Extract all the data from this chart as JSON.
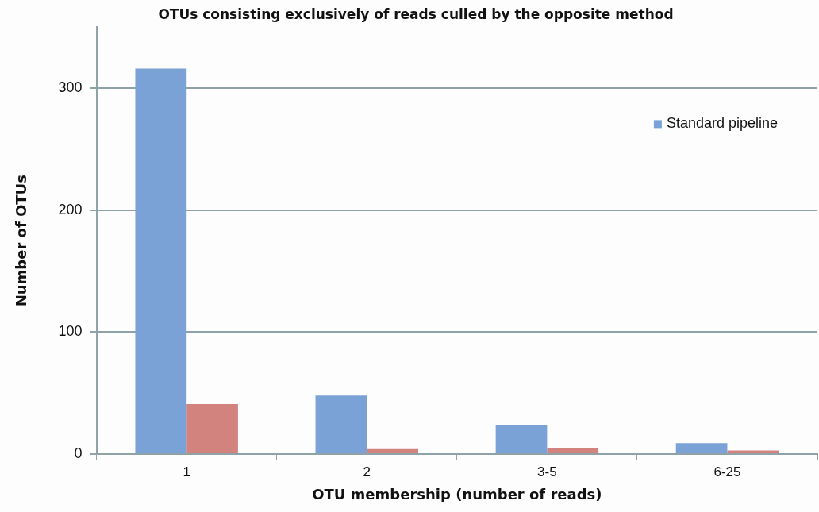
{
  "chart_data": {
    "type": "bar",
    "title": "OTUs consisting exclusively of reads culled by the opposite method",
    "xlabel": "OTU membership (number of reads)",
    "ylabel": "Number of OTUs",
    "categories": [
      "1",
      "2",
      "3-5",
      "6-25"
    ],
    "series": [
      {
        "name": "Standard pipeline",
        "color": "#7aa2d6",
        "values": [
          316,
          48,
          24,
          9
        ]
      },
      {
        "color": "#d3837e",
        "values": [
          41,
          4,
          5,
          3
        ]
      }
    ],
    "ylim": [
      0,
      350
    ],
    "yticks": [
      0,
      100,
      200,
      300
    ],
    "grid": "y",
    "legend": "top right"
  }
}
